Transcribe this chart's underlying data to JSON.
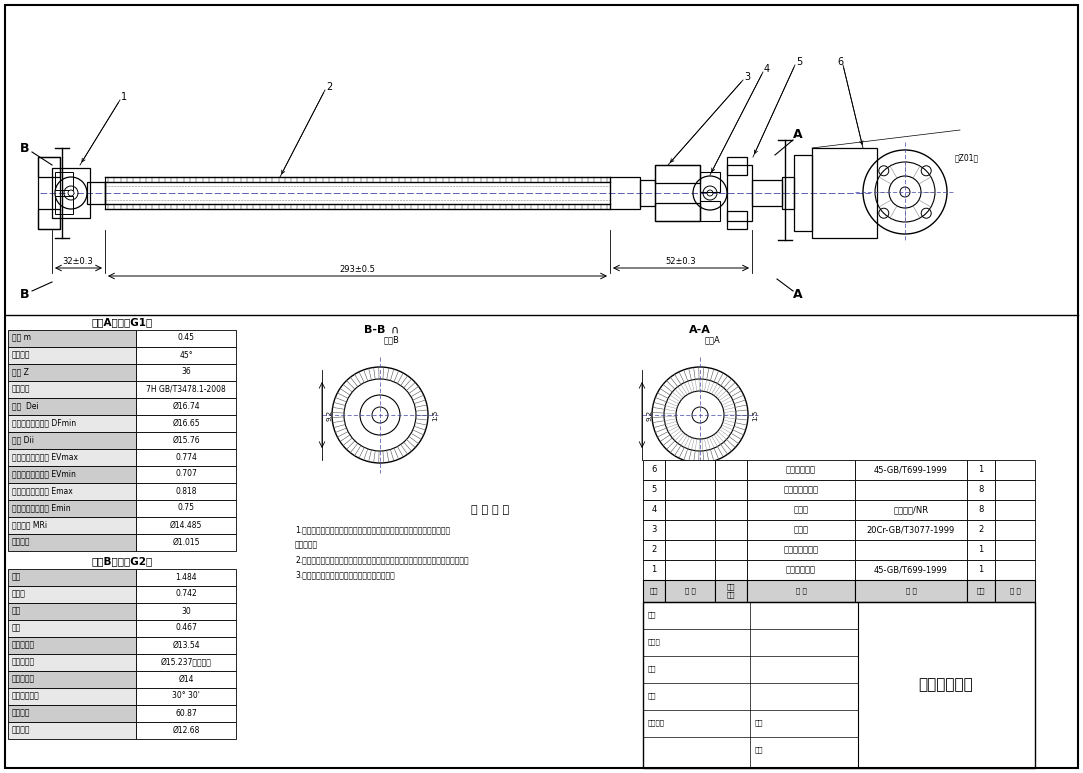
{
  "title": "转向下轴总成",
  "bg_color": "#ffffff",
  "line_color": "#000000",
  "g1_title": "花键A参数（G1）",
  "g1_rows": [
    [
      "模数 m",
      "0.45"
    ],
    [
      "压力角限",
      "45°"
    ],
    [
      "齿数 Z",
      "36"
    ],
    [
      "公差等级",
      "7H GB/T3478.1-2008"
    ],
    [
      "大径  Dei",
      "Ø16.74"
    ],
    [
      "渐开线终止最小值 DFmin",
      "Ø16.65"
    ],
    [
      "小径 Dii",
      "Ø15.76"
    ],
    [
      "作用齿槽宽最大值 EVmax",
      "0.774"
    ],
    [
      "作用齿槽宽最小值 EVmin",
      "0.707"
    ],
    [
      "实际齿槽宽最大值 Emax",
      "0.818"
    ],
    [
      "实际齿槽宽最小值 Emin",
      "0.75"
    ],
    [
      "量棒间距 MRi",
      "Ø14.485"
    ],
    [
      "量棒直径",
      "Ø1.015"
    ]
  ],
  "g2_title": "花键B参数（G2）",
  "g2_rows": [
    [
      "节距",
      "1.484"
    ],
    [
      "齿槽宽",
      "0.742"
    ],
    [
      "齿数",
      "30"
    ],
    [
      "模数",
      "0.467"
    ],
    [
      "齿顶圆直径",
      "Ø13.54"
    ],
    [
      "齿根圆直径",
      "Ø15.237（最小）"
    ],
    [
      "分度圆直径",
      "Ø14"
    ],
    [
      "分度圆压力角",
      "30° 30'"
    ],
    [
      "量棒直径",
      "60.87"
    ],
    [
      "量棒间距",
      "Ø12.68"
    ]
  ],
  "bom_rows": [
    [
      "6",
      "",
      "",
      "万向节主动叉",
      "45-GB/T699-1999",
      "1",
      ""
    ],
    [
      "5",
      "",
      "",
      "波纹管橡胶总成",
      "",
      "8",
      ""
    ],
    [
      "4",
      "",
      "",
      "管卡箍",
      "天鹅橡胶/NR",
      "8",
      ""
    ],
    [
      "3",
      "",
      "",
      "十字轴",
      "20Cr-GB/T3077-1999",
      "2",
      ""
    ],
    [
      "2",
      "",
      "",
      "转向器滑移总成",
      "",
      "1",
      ""
    ],
    [
      "1",
      "",
      "",
      "万向节从动叉",
      "45-GB/T699-1999",
      "1",
      ""
    ]
  ],
  "bom_header": [
    "序号",
    "代 号",
    "次量\n件号",
    "名 零",
    "材 料",
    "数量",
    "备 注"
  ],
  "dim1": "32±0.3",
  "dim2": "293±0.5",
  "dim3": "52±0.3",
  "tech_title": "技 术 要 求",
  "tech_notes": [
    "1.零件表面距最多摩擦磨损情缘平滑，不得有毛刺、飞边、氧化皮、钢铁、",
    "和失金等。",
    "2.装配前进行零、部件的主要配合尺寸，特别是过渡配合尺寸及最大频度进行复查。",
    "3.装配过程中零件不允许磕、碰、划擦等损伤。"
  ]
}
